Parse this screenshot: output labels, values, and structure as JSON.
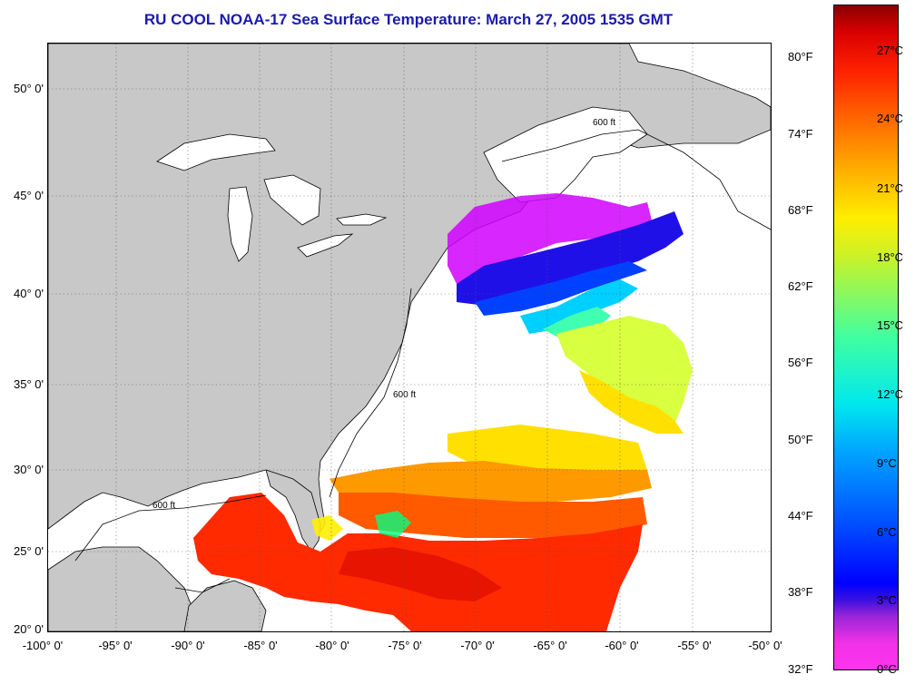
{
  "title": "RU COOL  NOAA-17  Sea Surface Temperature:  March 27, 2005 1535 GMT",
  "map": {
    "lat_ticks": [
      "50° 0'",
      "45° 0'",
      "40° 0'",
      "35° 0'",
      "30° 0'",
      "25° 0'",
      "20° 0'"
    ],
    "lon_ticks": [
      "-100° 0'",
      "-95° 0'",
      "-90° 0'",
      "-85° 0'",
      "-80° 0'",
      "-75° 0'",
      "-70° 0'",
      "-65° 0'",
      "-60° 0'",
      "-55° 0'",
      "-50° 0'"
    ],
    "contour_label": "600 ft",
    "land_color": "#c8c8c8",
    "water_color": "#ffffff"
  },
  "colorbar": {
    "fahrenheit_labels": [
      "80°F",
      "74°F",
      "68°F",
      "62°F",
      "56°F",
      "50°F",
      "44°F",
      "38°F",
      "32°F"
    ],
    "celsius_labels": [
      "27°C",
      "24°C",
      "21°C",
      "18°C",
      "15°C",
      "12°C",
      "9°C",
      "6°C",
      "3°C",
      "0°C"
    ]
  }
}
